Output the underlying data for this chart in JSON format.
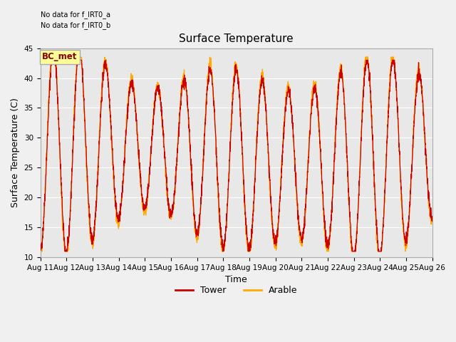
{
  "title": "Surface Temperature",
  "xlabel": "Time",
  "ylabel": "Surface Temperature (C)",
  "ylim": [
    10,
    45
  ],
  "yticks": [
    10,
    15,
    20,
    25,
    30,
    35,
    40,
    45
  ],
  "x_tick_labels": [
    "Aug 11",
    "Aug 12",
    "Aug 13",
    "Aug 14",
    "Aug 15",
    "Aug 16",
    "Aug 17",
    "Aug 18",
    "Aug 19",
    "Aug 20",
    "Aug 21",
    "Aug 22",
    "Aug 23",
    "Aug 24",
    "Aug 25",
    "Aug 26"
  ],
  "no_data_text": [
    "No data for f_IRT0_a",
    "No data for f_IRT0_b"
  ],
  "bc_met_label": "BC_met",
  "tower_color": "#cc0000",
  "arable_color": "#ffaa00",
  "tower_label": "Tower",
  "arable_label": "Arable",
  "background_color": "#e8e8e8",
  "grid_color": "#ffffff",
  "title_fontsize": 11,
  "axis_label_fontsize": 9,
  "tick_label_fontsize": 7.5,
  "legend_fontsize": 9,
  "fig_width": 6.4,
  "fig_height": 4.8
}
